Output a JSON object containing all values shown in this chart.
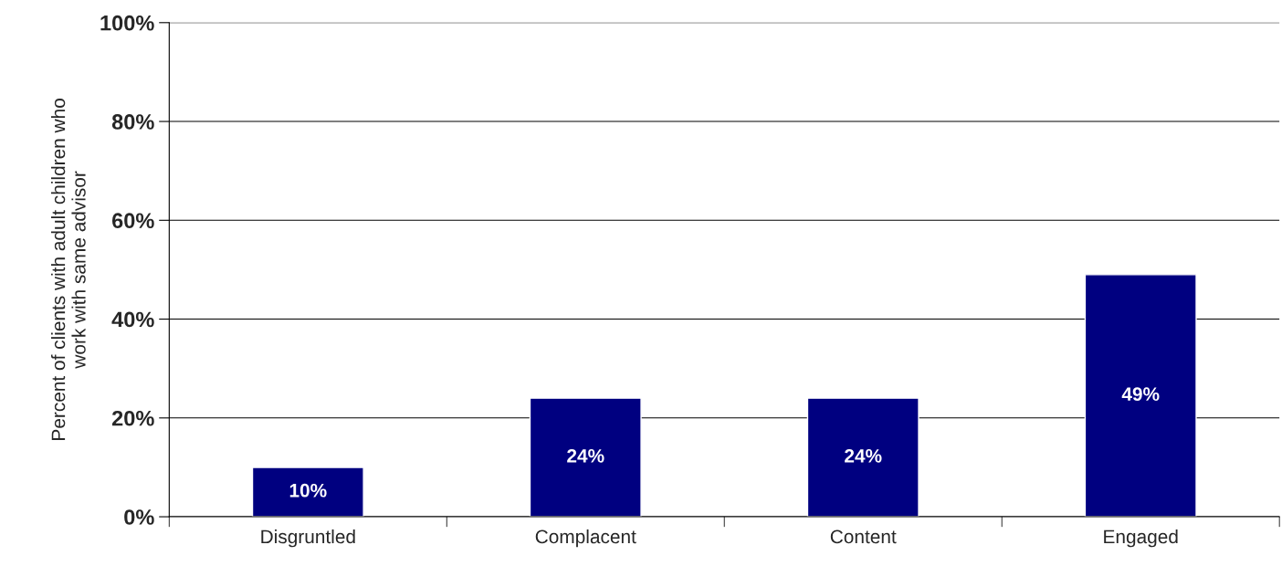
{
  "chart_data": {
    "type": "bar",
    "ylabel": "Percent of clients with adult children who\nwork with same advisor",
    "categories": [
      "Disgruntled",
      "Complacent",
      "Content",
      "Engaged"
    ],
    "values": [
      10,
      24,
      24,
      49
    ],
    "value_labels": [
      "10%",
      "24%",
      "24%",
      "49%"
    ],
    "color": "#000080",
    "ylim": [
      0,
      100
    ],
    "yticks": [
      {
        "value": 0,
        "label": "0%"
      },
      {
        "value": 20,
        "label": "20%"
      },
      {
        "value": 40,
        "label": "40%"
      },
      {
        "value": 60,
        "label": "60%"
      },
      {
        "value": 80,
        "label": "80%"
      },
      {
        "value": 100,
        "label": "100%"
      }
    ],
    "grid": "y"
  }
}
